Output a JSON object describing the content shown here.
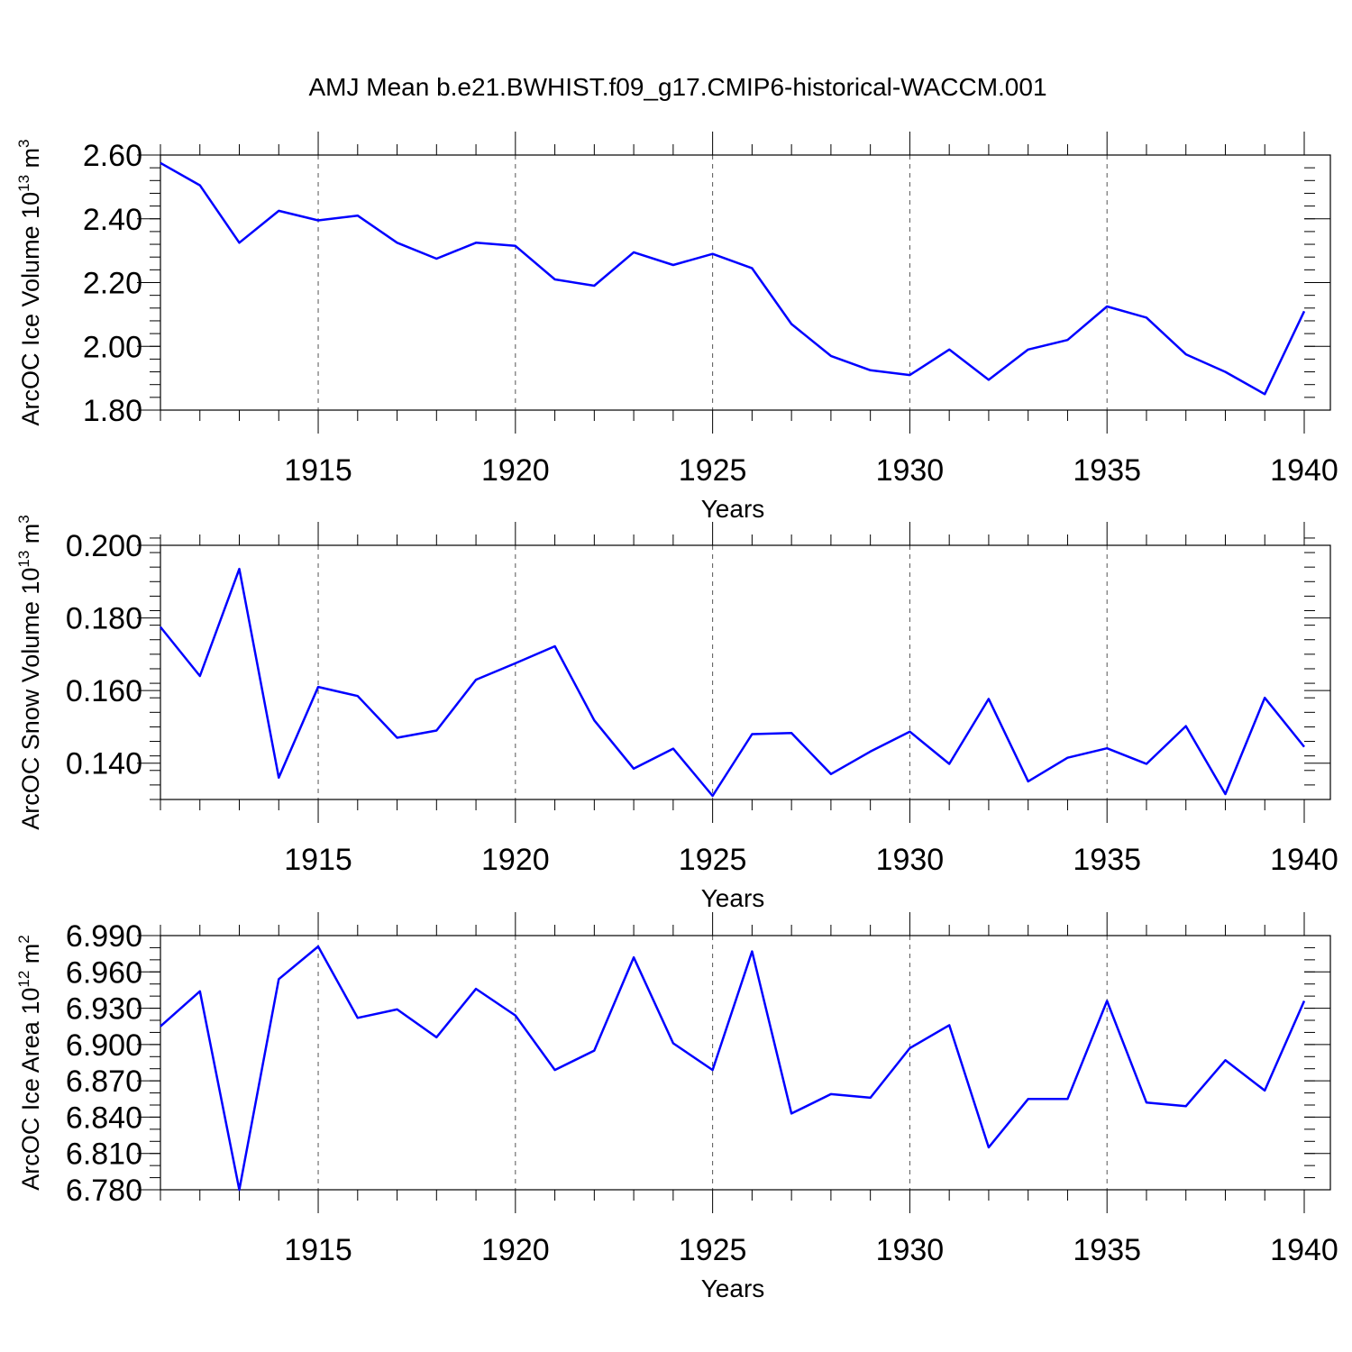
{
  "title": "AMJ Mean b.e21.BWHIST.f09_g17.CMIP6-historical-WACCM.001",
  "chart_data": [
    {
      "type": "line",
      "ylabel": {
        "text": "ArcOC Ice Volume 10",
        "exp": "13",
        "unit": " m",
        "unit_exp": "3"
      },
      "xlabel": "Years",
      "xlim": [
        1911,
        1940
      ],
      "ylim": [
        1.8,
        2.6
      ],
      "yticks": [
        "1.80",
        "2.00",
        "2.20",
        "2.40",
        "2.60"
      ],
      "ytick_values": [
        1.8,
        2.0,
        2.2,
        2.4,
        2.6
      ],
      "ymajor_step": 0.2,
      "yminor_step": 0.04,
      "xticks": [
        "1915",
        "1920",
        "1925",
        "1930",
        "1935",
        "1940"
      ],
      "xtick_values": [
        1915,
        1920,
        1925,
        1930,
        1935,
        1940
      ],
      "series": [
        {
          "name": "ice_volume",
          "color": "#0000ff",
          "x": [
            1911,
            1912,
            1913,
            1914,
            1915,
            1916,
            1917,
            1918,
            1919,
            1920,
            1921,
            1922,
            1923,
            1924,
            1925,
            1926,
            1927,
            1928,
            1929,
            1930,
            1931,
            1932,
            1933,
            1934,
            1935,
            1936,
            1937,
            1938,
            1939,
            1940
          ],
          "values": [
            2.575,
            2.505,
            2.325,
            2.425,
            2.395,
            2.41,
            2.325,
            2.275,
            2.325,
            2.315,
            2.21,
            2.19,
            2.295,
            2.255,
            2.29,
            2.245,
            2.07,
            1.97,
            1.925,
            1.91,
            1.99,
            1.895,
            1.99,
            2.02,
            2.125,
            2.09,
            1.975,
            1.92,
            1.85,
            2.11
          ]
        }
      ]
    },
    {
      "type": "line",
      "ylabel": {
        "text": "ArcOC Snow Volume 10",
        "exp": "13",
        "unit": " m",
        "unit_exp": "3"
      },
      "xlabel": "Years",
      "xlim": [
        1911,
        1940
      ],
      "ylim": [
        0.13,
        0.2
      ],
      "yticks": [
        "0.140",
        "0.160",
        "0.180",
        "0.200"
      ],
      "ytick_values": [
        0.14,
        0.16,
        0.18,
        0.2
      ],
      "ymajor_step": 0.02,
      "yminor_step": 0.004,
      "xticks": [
        "1915",
        "1920",
        "1925",
        "1930",
        "1935",
        "1940"
      ],
      "xtick_values": [
        1915,
        1920,
        1925,
        1930,
        1935,
        1940
      ],
      "series": [
        {
          "name": "snow_volume",
          "color": "#0000ff",
          "x": [
            1911,
            1912,
            1913,
            1914,
            1915,
            1916,
            1917,
            1918,
            1919,
            1920,
            1921,
            1922,
            1923,
            1924,
            1925,
            1926,
            1927,
            1928,
            1929,
            1930,
            1931,
            1932,
            1933,
            1934,
            1935,
            1936,
            1937,
            1938,
            1939,
            1940
          ],
          "values": [
            0.1775,
            0.164,
            0.1935,
            0.136,
            0.161,
            0.1585,
            0.147,
            0.149,
            0.163,
            0.1675,
            0.1722,
            0.1518,
            0.1385,
            0.144,
            0.131,
            0.148,
            0.1483,
            0.137,
            0.1432,
            0.1487,
            0.1398,
            0.1577,
            0.135,
            0.1415,
            0.1441,
            0.1398,
            0.1502,
            0.1315,
            0.158,
            0.1445
          ]
        }
      ]
    },
    {
      "type": "line",
      "ylabel": {
        "text": "ArcOC Ice Area 10",
        "exp": "12",
        "unit": " m",
        "unit_exp": "2"
      },
      "xlabel": "Years",
      "xlim": [
        1911,
        1940
      ],
      "ylim": [
        6.78,
        6.99
      ],
      "yticks": [
        "6.780",
        "6.810",
        "6.840",
        "6.870",
        "6.900",
        "6.930",
        "6.960",
        "6.990"
      ],
      "ytick_values": [
        6.78,
        6.81,
        6.84,
        6.87,
        6.9,
        6.93,
        6.96,
        6.99
      ],
      "ymajor_step": 0.03,
      "yminor_step": 0.01,
      "xticks": [
        "1915",
        "1920",
        "1925",
        "1930",
        "1935",
        "1940"
      ],
      "xtick_values": [
        1915,
        1920,
        1925,
        1930,
        1935,
        1940
      ],
      "series": [
        {
          "name": "ice_area",
          "color": "#0000ff",
          "x": [
            1911,
            1912,
            1913,
            1914,
            1915,
            1916,
            1917,
            1918,
            1919,
            1920,
            1921,
            1922,
            1923,
            1924,
            1925,
            1926,
            1927,
            1928,
            1929,
            1930,
            1931,
            1932,
            1933,
            1934,
            1935,
            1936,
            1937,
            1938,
            1939,
            1940
          ],
          "values": [
            6.915,
            6.944,
            6.78,
            6.954,
            6.981,
            6.922,
            6.929,
            6.906,
            6.946,
            6.924,
            6.879,
            6.895,
            6.972,
            6.901,
            6.879,
            6.977,
            6.843,
            6.859,
            6.856,
            6.897,
            6.916,
            6.815,
            6.855,
            6.855,
            6.936,
            6.852,
            6.849,
            6.887,
            6.862,
            6.936
          ]
        }
      ]
    }
  ]
}
